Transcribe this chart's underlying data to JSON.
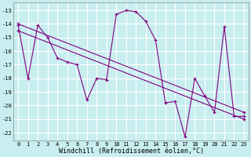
{
  "xlabel": "Windchill (Refroidissement éolien,°C)",
  "bg_color": "#c8eef0",
  "grid_color": "#ffffff",
  "line_color": "#800080",
  "xlim": [
    -0.5,
    23.5
  ],
  "ylim": [
    -22.6,
    -12.4
  ],
  "yticks": [
    -13,
    -14,
    -15,
    -16,
    -17,
    -18,
    -19,
    -20,
    -21,
    -22
  ],
  "xticks": [
    0,
    1,
    2,
    3,
    4,
    5,
    6,
    7,
    8,
    9,
    10,
    11,
    12,
    13,
    14,
    15,
    16,
    17,
    18,
    19,
    20,
    21,
    22,
    23
  ],
  "series1_x": [
    0,
    1,
    2,
    3,
    4,
    5,
    6,
    7,
    8,
    9,
    10,
    11,
    12,
    13,
    14,
    15,
    16,
    17,
    18,
    19,
    20,
    21,
    22,
    23
  ],
  "series1_y": [
    -14.1,
    -18.0,
    -14.1,
    -15.0,
    -16.5,
    -16.8,
    -17.0,
    -19.6,
    -18.0,
    -18.1,
    -13.3,
    -13.0,
    -13.1,
    -13.8,
    -15.2,
    -19.8,
    -19.7,
    -22.3,
    -18.0,
    -19.3,
    -20.5,
    -14.2,
    -20.8,
    -20.8
  ],
  "series2_x": [
    0,
    23
  ],
  "series2_y": [
    -14.0,
    -20.5
  ],
  "series3_x": [
    0,
    23
  ],
  "series3_y": [
    -14.5,
    -21.0
  ],
  "marker": "+",
  "markersize": 3,
  "linewidth": 0.8,
  "label_fontsize": 6,
  "tick_fontsize": 5
}
